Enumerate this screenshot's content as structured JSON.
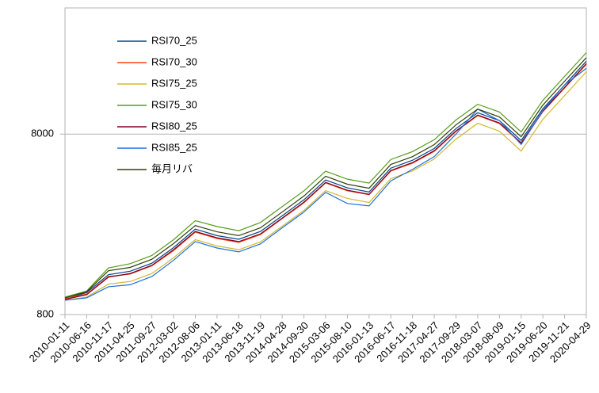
{
  "chart_data": {
    "type": "line",
    "categories": [
      "2010-01-11",
      "2010-06-16",
      "2010-11-17",
      "2011-04-25",
      "2011-09-27",
      "2012-03-02",
      "2012-08-06",
      "2013-01-11",
      "2013-06-18",
      "2013-11-19",
      "2014-04-28",
      "2014-09-30",
      "2015-03-06",
      "2015-08-10",
      "2016-01-13",
      "2016-06-17",
      "2016-11-18",
      "2017-04-27",
      "2017-09-29",
      "2018-03-07",
      "2018-08-09",
      "2019-01-15",
      "2019-06-20",
      "2019-11-21",
      "2020-04-29"
    ],
    "series": [
      {
        "name": "RSI70_25",
        "color": "#004586",
        "values": [
          975,
          1060,
          1330,
          1390,
          1540,
          1880,
          2380,
          2190,
          2090,
          2310,
          2820,
          3460,
          4450,
          4030,
          3820,
          5180,
          5730,
          6660,
          8580,
          10500,
          9500,
          7370,
          11050,
          14960,
          20250
        ]
      },
      {
        "name": "RSI70_30",
        "color": "#ff420e",
        "values": [
          980,
          1040,
          1300,
          1340,
          1490,
          1810,
          2290,
          2110,
          2010,
          2220,
          2720,
          3330,
          4290,
          3880,
          3690,
          4990,
          5520,
          6420,
          8270,
          10130,
          9150,
          7100,
          10650,
          14400,
          19500
        ]
      },
      {
        "name": "RSI75_25",
        "color": "#d4b82a",
        "values": [
          960,
          1000,
          1180,
          1220,
          1350,
          1650,
          2080,
          1920,
          1830,
          2020,
          2470,
          3020,
          3890,
          3520,
          3340,
          4530,
          5000,
          5820,
          7500,
          9180,
          8300,
          6440,
          9660,
          13070,
          17700
        ]
      },
      {
        "name": "RSI75_30",
        "color": "#579d1c",
        "values": [
          1000,
          1080,
          1450,
          1530,
          1700,
          2080,
          2650,
          2460,
          2330,
          2590,
          3170,
          3880,
          4980,
          4500,
          4280,
          5780,
          6400,
          7450,
          9580,
          11700,
          10600,
          8230,
          12300,
          16700,
          22600
        ]
      },
      {
        "name": "RSI80_25",
        "color": "#7e0021",
        "values": [
          970,
          1030,
          1290,
          1350,
          1500,
          1830,
          2310,
          2130,
          2030,
          2240,
          2740,
          3360,
          4320,
          3910,
          3710,
          5030,
          5560,
          6470,
          8330,
          10200,
          9220,
          7160,
          10730,
          14520,
          19660
        ]
      },
      {
        "name": "RSI85_25",
        "color": "#1e6fe0",
        "values": [
          960,
          990,
          1140,
          1170,
          1300,
          1600,
          2030,
          1870,
          1780,
          1970,
          2420,
          2960,
          3800,
          3300,
          3200,
          4400,
          5100,
          6000,
          8000,
          11000,
          9500,
          7000,
          10800,
          15000,
          18500
        ]
      },
      {
        "name": "毎月リバ",
        "color": "#314004",
        "values": [
          990,
          1070,
          1400,
          1460,
          1620,
          1980,
          2490,
          2300,
          2190,
          2420,
          2960,
          3630,
          4670,
          4220,
          4010,
          5430,
          6000,
          6990,
          9000,
          11000,
          9960,
          7730,
          11590,
          15700,
          21200
        ]
      }
    ],
    "ylim": [
      800,
      40000
    ],
    "yticks": [
      800,
      8000
    ],
    "log_scale": true,
    "grid": true
  }
}
